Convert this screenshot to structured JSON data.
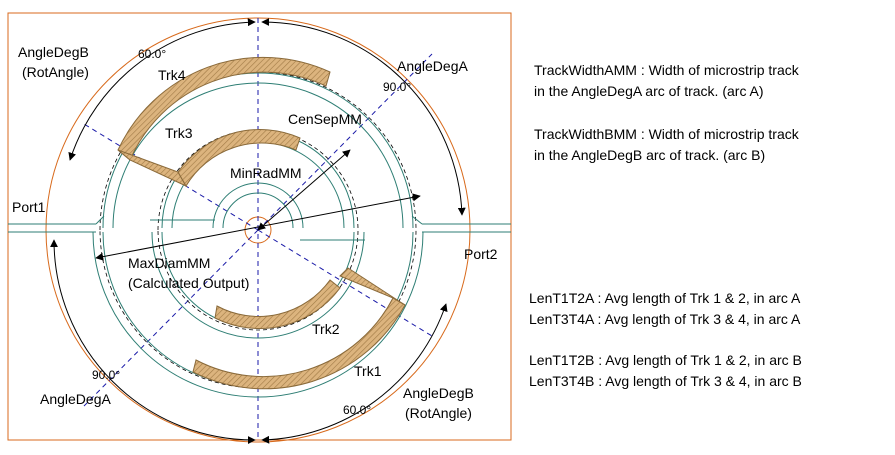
{
  "diagram": {
    "labels": {
      "angle_b_top": "AngleDegB",
      "rot_angle_top": "(RotAngle)",
      "deg60_top": "60.0°",
      "angle_a_top": "AngleDegA",
      "deg90_top": "90.0°",
      "trk4": "Trk4",
      "trk3": "Trk3",
      "censep": "CenSepMM",
      "minrad": "MinRadMM",
      "port1": "Port1",
      "port2": "Port2",
      "maxdiam": "MaxDiamMM",
      "calc_output": "(Calculated Output)",
      "trk2": "Trk2",
      "trk1": "Trk1",
      "deg90_bottom": "90.0°",
      "angle_a_bottom": "AngleDegA",
      "angle_b_bottom": "AngleDegB",
      "rot_angle_bottom": "(RotAngle)",
      "deg60_bottom": "60.0°"
    },
    "colors": {
      "frame": "#d86a1c",
      "track_fill": "#d8b27a",
      "track_edge": "#8a6a3a",
      "strip": "#2e7e74",
      "axis": "#1a1aa8"
    }
  },
  "descriptions": {
    "track_width_a": [
      "TrackWidthAMM : Width of microstrip track",
      "in the AngleDegA arc of track. (arc A)"
    ],
    "track_width_b": [
      "TrackWidthBMM : Width of microstrip track",
      "in the AngleDegB arc of track. (arc B)"
    ],
    "len_a": [
      "LenT1T2A : Avg length of Trk 1 & 2, in arc A",
      "LenT3T4A : Avg length of Trk 3 & 4, in arc A"
    ],
    "len_b": [
      "LenT1T2B : Avg length of Trk 1 & 2, in arc B",
      "LenT3T4B : Avg length of Trk 3 & 4, in arc B"
    ]
  }
}
